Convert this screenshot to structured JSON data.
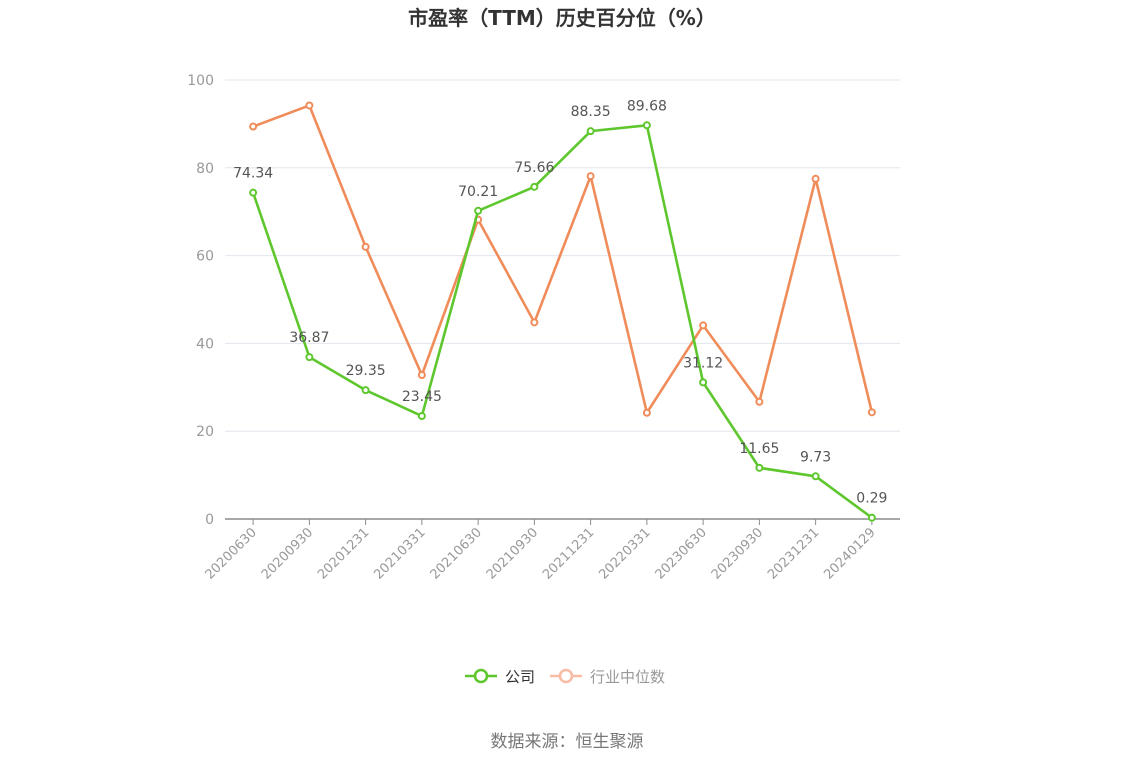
{
  "chart_data": {
    "type": "line",
    "title": "市盈率（TTM）历史百分位（%）",
    "categories": [
      "20200630",
      "20200930",
      "20201231",
      "20210331",
      "20210630",
      "20210930",
      "20211231",
      "20220331",
      "20230630",
      "20230930",
      "20231231",
      "20240129"
    ],
    "ylim": [
      0,
      100
    ],
    "yticks": [
      0,
      20,
      40,
      60,
      80,
      100
    ],
    "grid": true,
    "legend_position": "bottom-center",
    "series": [
      {
        "name": "公司",
        "color": "#5ec72e",
        "values": [
          74.34,
          36.87,
          29.35,
          23.45,
          70.21,
          75.66,
          88.35,
          89.68,
          31.12,
          11.65,
          9.73,
          0.29
        ],
        "labels": [
          "74.34",
          "36.87",
          "29.35",
          "23.45",
          "70.21",
          "75.66",
          "88.35",
          "89.68",
          "31.12",
          "11.65",
          "9.73",
          "0.29"
        ]
      },
      {
        "name": "行业中位数",
        "color": "#f08c5a",
        "values": [
          89.4,
          94.2,
          62.0,
          32.8,
          68.2,
          44.8,
          78.1,
          24.2,
          44.1,
          26.7,
          77.5,
          24.3
        ]
      }
    ],
    "source": "数据来源：恒生聚源"
  },
  "legend": {
    "inactive_color": "#f8bca4",
    "inactive_text_color": "#999999"
  }
}
